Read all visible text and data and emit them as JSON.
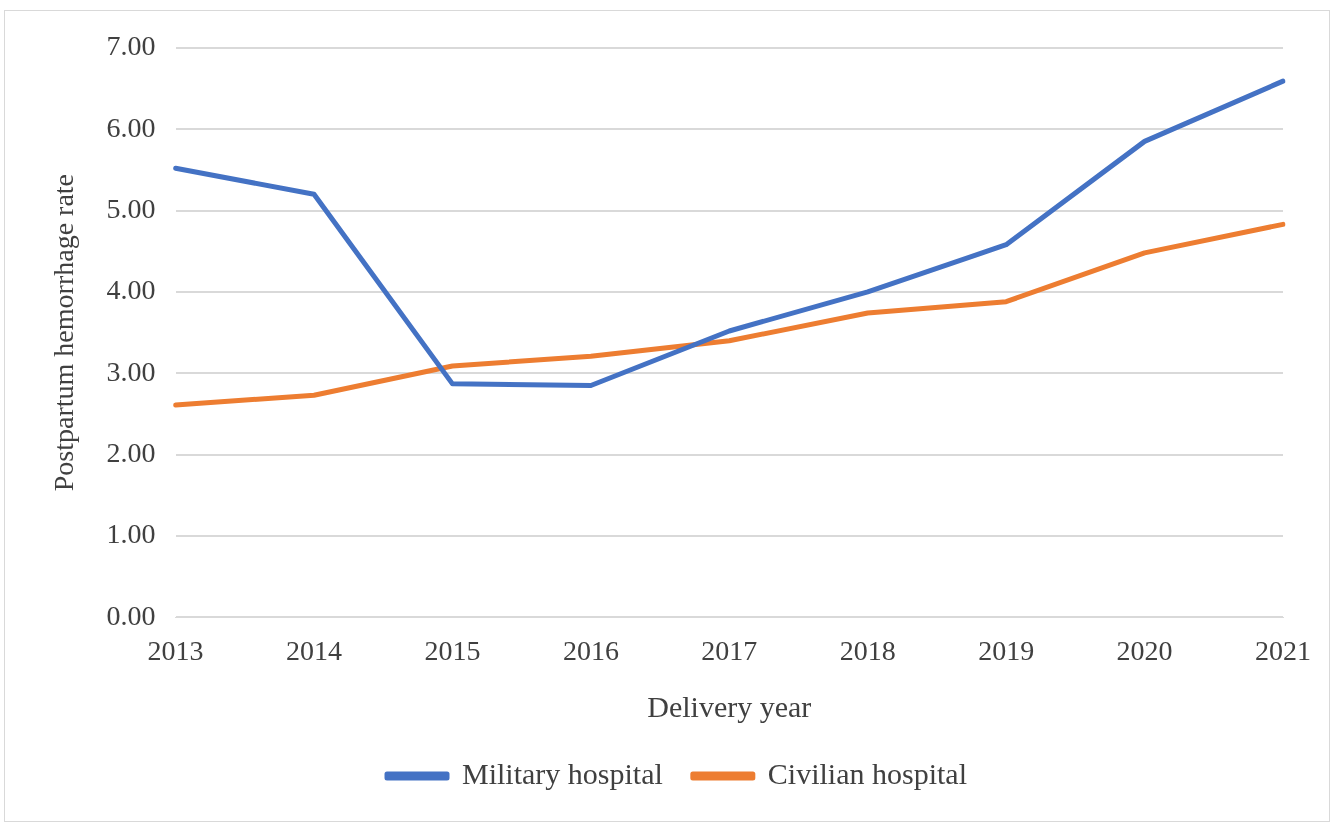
{
  "chart_data": {
    "type": "line",
    "xlabel": "Delivery year",
    "ylabel": "Postpartum hemorrhage rate",
    "categories": [
      "2013",
      "2014",
      "2015",
      "2016",
      "2017",
      "2018",
      "2019",
      "2020",
      "2021"
    ],
    "series": [
      {
        "name": "Military hospital",
        "color": "#4472c4",
        "values": [
          5.52,
          5.2,
          2.87,
          2.85,
          3.52,
          4.0,
          4.58,
          5.85,
          6.59
        ]
      },
      {
        "name": "Civilian hospital",
        "color": "#ed7d31",
        "values": [
          2.61,
          2.73,
          3.09,
          3.21,
          3.4,
          3.74,
          3.88,
          4.48,
          4.83
        ]
      }
    ],
    "ylim": [
      0,
      7
    ],
    "yticks": [
      {
        "value": 0,
        "label": "0.00"
      },
      {
        "value": 1,
        "label": "1.00"
      },
      {
        "value": 2,
        "label": "2.00"
      },
      {
        "value": 3,
        "label": "3.00"
      },
      {
        "value": 4,
        "label": "4.00"
      },
      {
        "value": 5,
        "label": "5.00"
      },
      {
        "value": 6,
        "label": "6.00"
      },
      {
        "value": 7,
        "label": "7.00"
      }
    ],
    "grid": "y",
    "legend": "bottom",
    "marker": "none",
    "line_style": "solid"
  }
}
